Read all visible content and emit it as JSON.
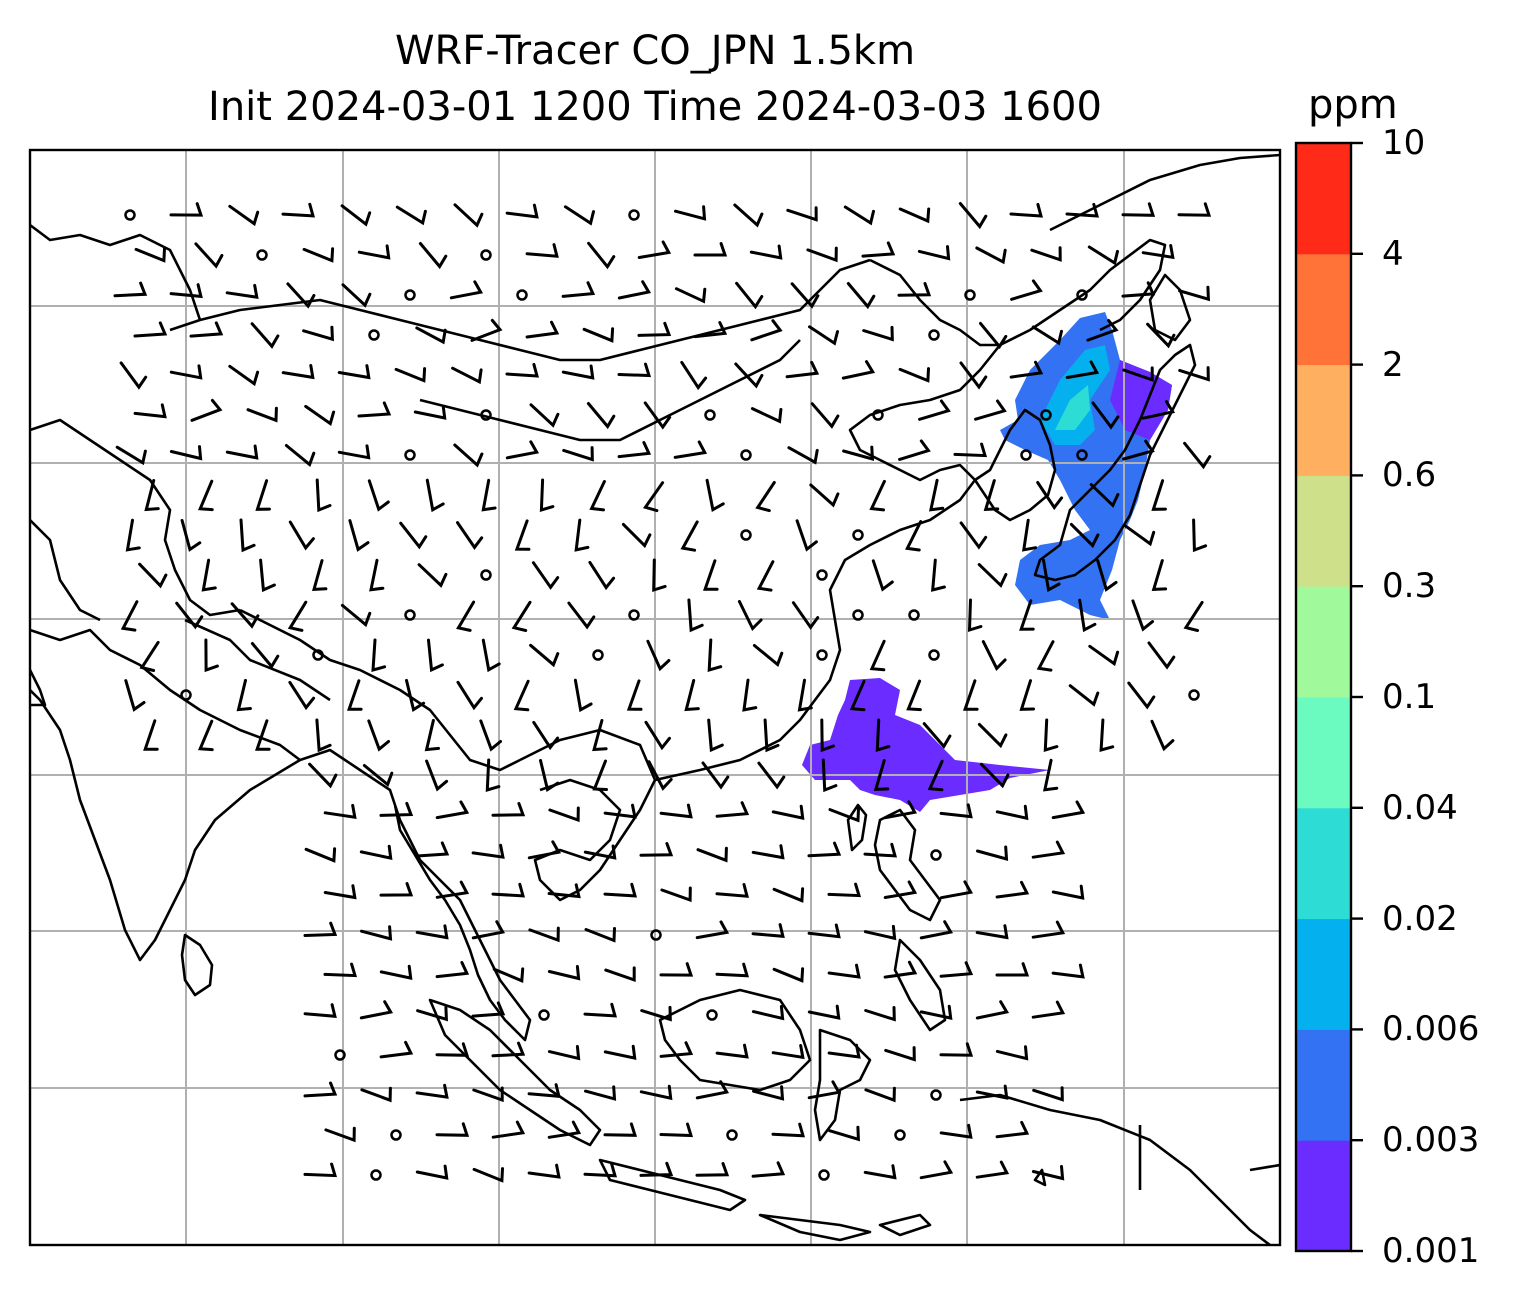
{
  "title": {
    "line1": "WRF-Tracer CO_JPN 1.5km",
    "line2": "Init 2024-03-01 1200 Time 2024-03-03 1600"
  },
  "colorbar": {
    "unit": "ppm",
    "ticks": [
      "0.001",
      "0.003",
      "0.006",
      "0.02",
      "0.04",
      "0.1",
      "0.3",
      "0.6",
      "2",
      "4",
      "10"
    ],
    "colors": [
      "#6a2cff",
      "#3372f2",
      "#05b0ee",
      "#2edcd6",
      "#6bfbc0",
      "#a0f99a",
      "#cfe08a",
      "#ffaf60",
      "#ff7238",
      "#ff2b18"
    ]
  },
  "map": {
    "gridlines": true,
    "features": [
      "coastlines",
      "country-borders",
      "wind-barbs",
      "tracer-plumes"
    ]
  }
}
